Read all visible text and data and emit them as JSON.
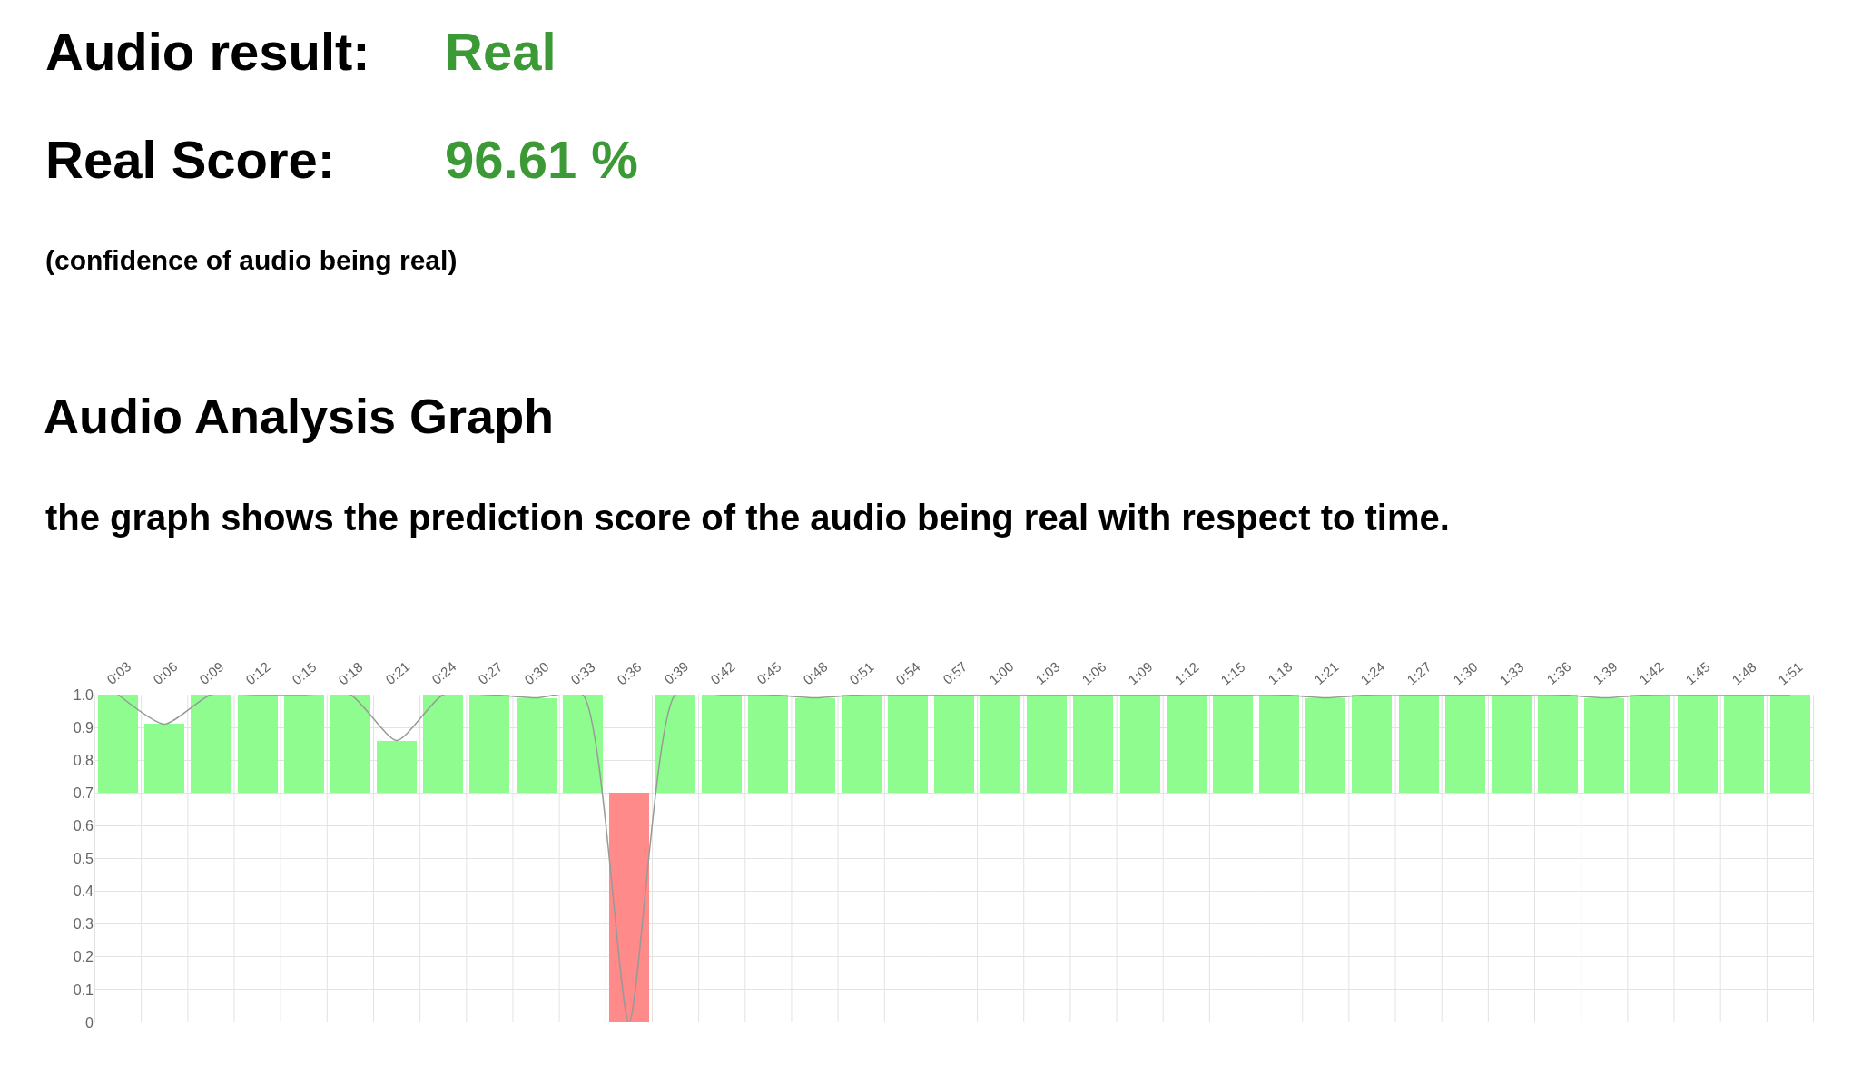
{
  "chart_data": {
    "type": "line",
    "title": "Audio Analysis Graph",
    "subtitle": "the graph shows the prediction score of the audio being real with respect to time.",
    "annotations": [
      "Audio result:",
      "Real",
      "Real Score:",
      "96.61 %",
      "(confidence of audio being real)"
    ],
    "categories": [
      "0:03",
      "0:06",
      "0:09",
      "0:12",
      "0:15",
      "0:18",
      "0:21",
      "0:24",
      "0:27",
      "0:30",
      "0:33",
      "0:36",
      "0:39",
      "0:42",
      "0:45",
      "0:48",
      "0:51",
      "0:54",
      "0:57",
      "1:00",
      "1:03",
      "1:06",
      "1:09",
      "1:12",
      "1:15",
      "1:18",
      "1:21",
      "1:24",
      "1:27",
      "1:30",
      "1:33",
      "1:36",
      "1:39",
      "1:42",
      "1:45",
      "1:48",
      "1:51"
    ],
    "series": [
      {
        "type": "bar",
        "color": "#8efc8e",
        "base": [
          0.7,
          0.7,
          0.7,
          0.7,
          0.7,
          0.7,
          0.7,
          0.7,
          0.7,
          0.7,
          0.7,
          0.7,
          0.7,
          0.7,
          0.7,
          0.7,
          0.7,
          0.7,
          0.7,
          0.7,
          0.7,
          0.7,
          0.7,
          0.7,
          0.7,
          0.7,
          0.7,
          0.7,
          0.7,
          0.7,
          0.7,
          0.7,
          0.7,
          0.7,
          0.7,
          0.7,
          0.7
        ],
        "colors": [
          "#8efc8e",
          "#8efc8e",
          "#8efc8e",
          "#8efc8e",
          "#8efc8e",
          "#8efc8e",
          "#8efc8e",
          "#8efc8e",
          "#8efc8e",
          "#8efc8e",
          "#8efc8e",
          "#ff8a8a",
          "#8efc8e",
          "#8efc8e",
          "#8efc8e",
          "#8efc8e",
          "#8efc8e",
          "#8efc8e",
          "#8efc8e",
          "#8efc8e",
          "#8efc8e",
          "#8efc8e",
          "#8efc8e",
          "#8efc8e",
          "#8efc8e",
          "#8efc8e",
          "#8efc8e",
          "#8efc8e",
          "#8efc8e",
          "#8efc8e",
          "#8efc8e",
          "#8efc8e",
          "#8efc8e",
          "#8efc8e",
          "#8efc8e",
          "#8efc8e",
          "#8efc8e"
        ],
        "values": [
          0.3,
          0.21,
          0.3,
          0.3,
          0.3,
          0.3,
          0.16,
          0.3,
          0.3,
          0.29,
          0.3,
          -0.7,
          0.3,
          0.3,
          0.3,
          0.29,
          0.3,
          0.3,
          0.3,
          0.3,
          0.3,
          0.3,
          0.3,
          0.3,
          0.3,
          0.3,
          0.29,
          0.3,
          0.3,
          0.3,
          0.3,
          0.3,
          0.29,
          0.3,
          0.3,
          0.3,
          0.3
        ]
      },
      {
        "color": "#999999",
        "values": [
          1.0,
          0.91,
          1.0,
          1.0,
          1.0,
          1.0,
          0.86,
          1.0,
          1.0,
          0.99,
          1.0,
          0.0,
          1.0,
          1.0,
          1.0,
          0.99,
          1.0,
          1.0,
          1.0,
          1.0,
          1.0,
          1.0,
          1.0,
          1.0,
          1.0,
          1.0,
          0.99,
          1.0,
          1.0,
          1.0,
          1.0,
          1.0,
          0.99,
          1.0,
          1.0,
          1.0,
          1.0
        ]
      }
    ],
    "ylim": [
      0,
      1.0
    ],
    "yticks": [
      0,
      0.1,
      0.2,
      0.3,
      0.4,
      0.5,
      0.6,
      0.7,
      0.8,
      0.9,
      {
        "value": 1.0,
        "label": "1.0"
      }
    ],
    "grid": true,
    "marker": "none",
    "line_style": "solid"
  }
}
